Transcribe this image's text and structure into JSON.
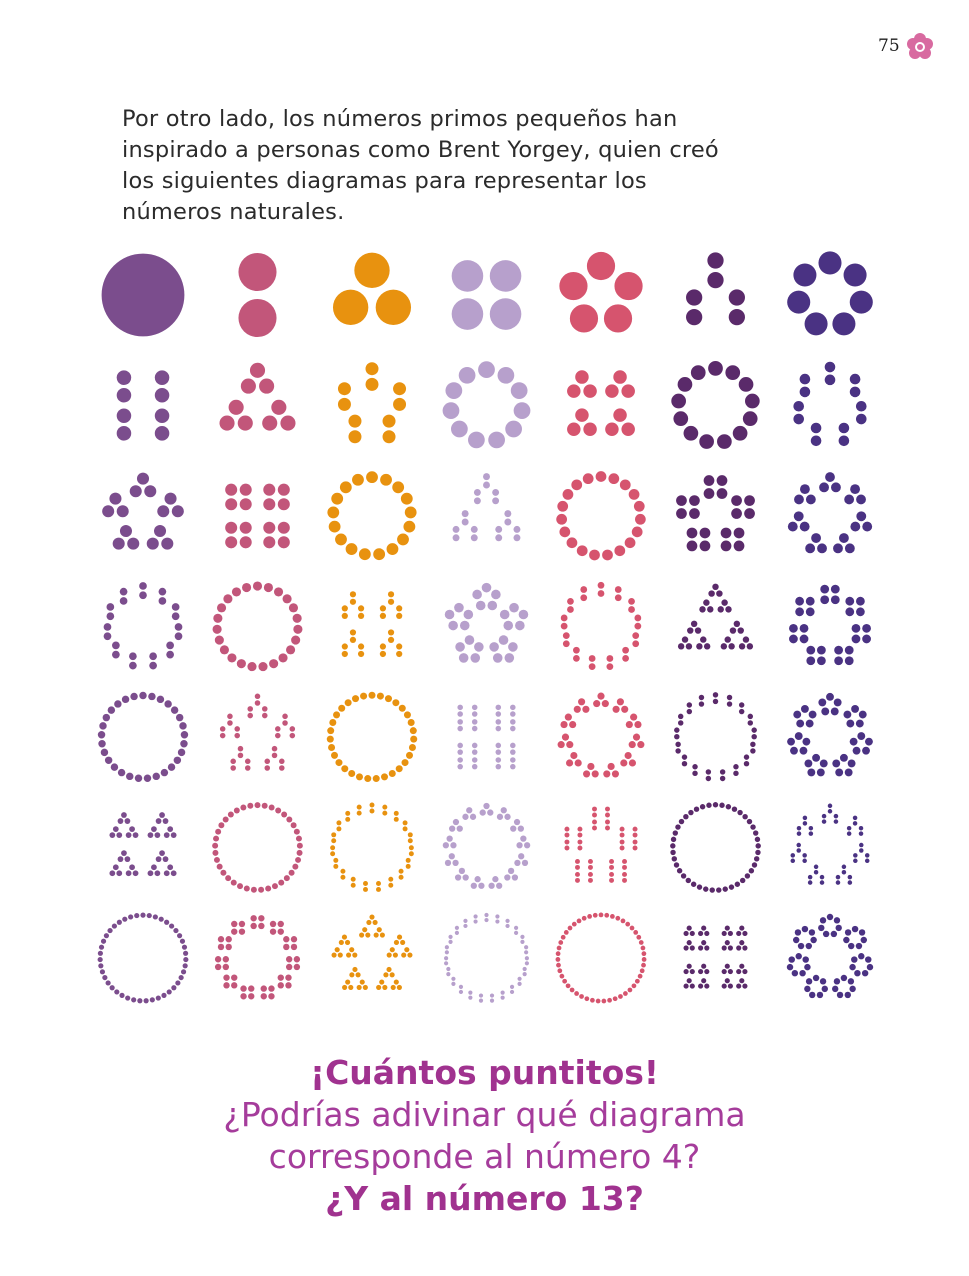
{
  "page": {
    "number": "75",
    "icon": "flower-icon"
  },
  "intro": {
    "text": "Por otro lado, los números primos pequeños han inspirado a personas como Brent Yorgey, quien creó los siguientes diagramas para representar los números naturales."
  },
  "diagrams": {
    "first": 1,
    "last": 49,
    "columns": 7,
    "colors": [
      "#4a3283",
      "#d6546e",
      "#e8920f",
      "#7b4d8d",
      "#5a2a6a",
      "#b7a0cc",
      "#c2567a"
    ]
  },
  "closing": {
    "line1": "¡Cuántos puntitos!",
    "line2": "¿Podrías adivinar qué diagrama",
    "line3": "corresponde al número 4?",
    "line4": "¿Y al número 13?"
  }
}
